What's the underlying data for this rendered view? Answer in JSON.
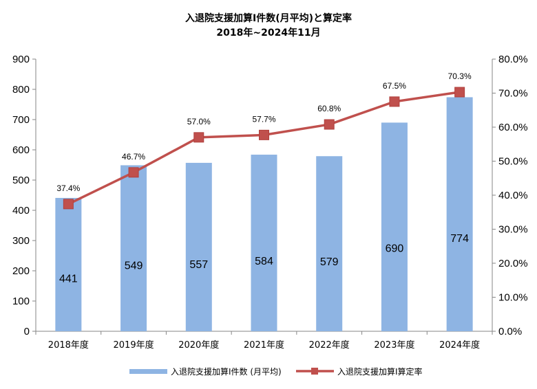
{
  "chart_data": {
    "type": "bar",
    "title": "入退院支援加算Ⅰ件数(月平均)と算定率",
    "subtitle": "2018年~2024年11月",
    "categories": [
      "2018年度",
      "2019年度",
      "2020年度",
      "2021年度",
      "2022年度",
      "2023年度",
      "2024年度"
    ],
    "series": [
      {
        "name": "入退院支援加算Ⅰ件数 (月平均)",
        "type": "bar",
        "axis": "left",
        "color": "#8EB4E3",
        "values": [
          441,
          549,
          557,
          584,
          579,
          690,
          774
        ],
        "labels": [
          "441",
          "549",
          "557",
          "584",
          "579",
          "690",
          "774"
        ]
      },
      {
        "name": "入退院支援加算Ⅰ算定率",
        "type": "line",
        "axis": "right",
        "color": "#C0504D",
        "marker": "square",
        "values": [
          37.4,
          46.7,
          57.0,
          57.7,
          60.8,
          67.5,
          70.3
        ],
        "labels": [
          "37.4%",
          "46.7%",
          "57.0%",
          "57.7%",
          "60.8%",
          "67.5%",
          "70.3%"
        ]
      }
    ],
    "ylim_left": [
      0,
      900
    ],
    "ylim_right": [
      0,
      80
    ],
    "yticks_left": [
      "0",
      "100",
      "200",
      "300",
      "400",
      "500",
      "600",
      "700",
      "800",
      "900"
    ],
    "yticks_right": [
      "0.0%",
      "10.0%",
      "20.0%",
      "30.0%",
      "40.0%",
      "50.0%",
      "60.0%",
      "70.0%",
      "80.0%"
    ],
    "grid": false,
    "legend_position": "bottom"
  }
}
